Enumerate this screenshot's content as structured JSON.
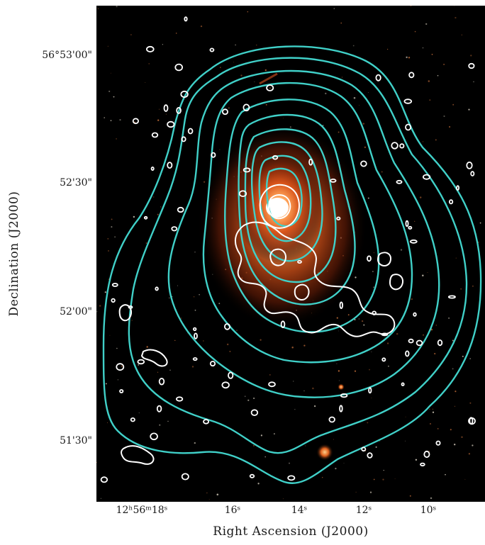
{
  "figure": {
    "x_axis_title": "Right Ascension (J2000)",
    "y_axis_title": "Declination (J2000)",
    "x_ticks": [
      "12ʰ56ᵐ18ˢ",
      "16ˢ",
      "14ˢ",
      "12ˢ",
      "10ˢ"
    ],
    "y_ticks": [
      "56°53'00\"",
      "52'30\"",
      "52'00\"",
      "51'30\""
    ],
    "colors": {
      "background_sky": "#000000",
      "galaxy_core": "#ffffff",
      "galaxy_glow": "#e8641e",
      "radio_contours": "#40d0c8",
      "optical_contours": "#ffffff"
    }
  }
}
